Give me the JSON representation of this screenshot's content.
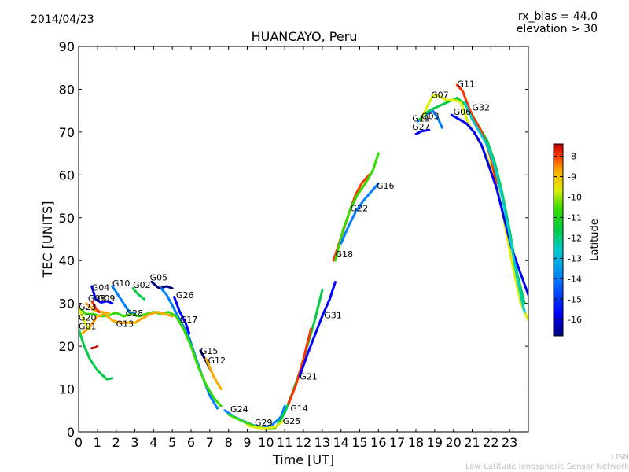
{
  "header": {
    "date": "2014/04/23",
    "rx_bias": "rx_bias = 44.0",
    "elevation": "elevation > 30",
    "title": "HUANCAYO, Peru"
  },
  "footer": {
    "line1": "LISN",
    "line2": "Low-Latitude Ionospheric Sensor Network"
  },
  "colors": {
    "background": "#ffffff",
    "axis": "#000000",
    "colormap": [
      "#00007f",
      "#0000ff",
      "#007fff",
      "#00cccc",
      "#00cc44",
      "#33dd00",
      "#ddee00",
      "#ffaa00",
      "#ff3300",
      "#c00000"
    ]
  },
  "chart_data": {
    "type": "line",
    "title": "HUANCAYO, Peru",
    "xlabel": "Time [UT]",
    "ylabel": "TEC [UNITS]",
    "xlim": [
      0,
      24
    ],
    "ylim": [
      0,
      90
    ],
    "xticks": [
      0,
      1,
      2,
      3,
      4,
      5,
      6,
      7,
      8,
      9,
      10,
      11,
      12,
      13,
      14,
      15,
      16,
      17,
      18,
      19,
      20,
      21,
      22,
      23
    ],
    "yticks": [
      0,
      10,
      20,
      30,
      40,
      50,
      60,
      70,
      80,
      90
    ],
    "colorbar": {
      "label": "Latitude",
      "range": [
        -16.8,
        -7.4
      ],
      "ticks": [
        -16,
        -15,
        -14,
        -13,
        -12,
        -11,
        -10,
        -9,
        -8
      ]
    },
    "series": [
      {
        "name": "G04",
        "color_lat": -16,
        "label_at": [
          0.7,
          33.0
        ],
        "points": [
          [
            0.7,
            34
          ],
          [
            0.9,
            31
          ],
          [
            1.2,
            30.2
          ],
          [
            1.5,
            30.5
          ],
          [
            1.8,
            30
          ]
        ]
      },
      {
        "name": "G10",
        "color_lat": -15,
        "label_at": [
          1.8,
          34.0
        ],
        "points": [
          [
            1.8,
            34
          ],
          [
            2.1,
            32
          ],
          [
            2.4,
            30
          ],
          [
            2.7,
            28
          ],
          [
            3.0,
            27.5
          ]
        ]
      },
      {
        "name": "G02",
        "color_lat": -12.5,
        "label_at": [
          2.9,
          33.6
        ],
        "points": [
          [
            2.9,
            33.5
          ],
          [
            3.2,
            32
          ],
          [
            3.5,
            31
          ]
        ]
      },
      {
        "name": "G05",
        "color_lat": -16.5,
        "label_at": [
          3.8,
          35.4
        ],
        "points": [
          [
            3.9,
            35
          ],
          [
            4.3,
            33.5
          ],
          [
            4.7,
            34
          ],
          [
            5.0,
            33.5
          ]
        ]
      },
      {
        "name": "G26",
        "color_lat": -16,
        "label_at": [
          5.2,
          31.2
        ],
        "points": [
          [
            5.1,
            31.5
          ],
          [
            5.4,
            28
          ],
          [
            5.7,
            25.5
          ],
          [
            5.9,
            23
          ]
        ]
      },
      {
        "name": "G17",
        "color_lat": -14.5,
        "label_at": [
          5.4,
          25.5
        ],
        "points": [
          [
            4.4,
            33.5
          ],
          [
            4.7,
            32
          ],
          [
            5.0,
            29.5
          ],
          [
            5.3,
            27
          ],
          [
            5.6,
            24.5
          ],
          [
            5.9,
            22
          ],
          [
            6.2,
            18
          ],
          [
            6.6,
            13
          ],
          [
            7.0,
            8.5
          ],
          [
            7.4,
            5.5
          ]
        ]
      },
      {
        "name": "G15",
        "color_lat": -16.5,
        "label_at": [
          6.5,
          18.2
        ],
        "points": [
          [
            6.5,
            19
          ],
          [
            6.8,
            16.5
          ],
          [
            7.1,
            14
          ]
        ]
      },
      {
        "name": "G12",
        "color_lat": -10,
        "label_at": [
          6.9,
          16.0
        ],
        "points": [
          [
            6.8,
            17
          ],
          [
            7.2,
            13
          ],
          [
            7.6,
            10
          ]
        ]
      },
      {
        "name": "G28",
        "color_lat": -12,
        "label_at": [
          2.5,
          27.0
        ],
        "points": [
          [
            0.0,
            29
          ],
          [
            0.4,
            27.5
          ],
          [
            0.8,
            27.5
          ],
          [
            1.2,
            27
          ],
          [
            1.6,
            27.2
          ],
          [
            2.0,
            27.8
          ],
          [
            2.4,
            27
          ],
          [
            2.8,
            27.5
          ],
          [
            3.2,
            27
          ],
          [
            3.6,
            27.5
          ],
          [
            4.0,
            28
          ],
          [
            4.4,
            27.5
          ],
          [
            4.8,
            28
          ],
          [
            5.2,
            27
          ],
          [
            5.6,
            24
          ],
          [
            6.0,
            20
          ],
          [
            6.4,
            15
          ],
          [
            6.8,
            11
          ],
          [
            7.2,
            8
          ],
          [
            7.6,
            6
          ]
        ]
      },
      {
        "name": "G13",
        "color_lat": -9.8,
        "label_at": [
          2.0,
          24.5
        ],
        "points": [
          [
            0.2,
            23
          ],
          [
            0.6,
            24.5
          ],
          [
            1.0,
            27
          ],
          [
            1.4,
            27.5
          ],
          [
            1.8,
            26
          ],
          [
            2.2,
            25.5
          ],
          [
            2.6,
            25.5
          ],
          [
            3.0,
            25.5
          ],
          [
            3.4,
            26.5
          ],
          [
            3.8,
            27.5
          ],
          [
            4.2,
            28
          ],
          [
            4.6,
            27.5
          ],
          [
            5.0,
            27
          ]
        ]
      },
      {
        "name": "G08",
        "color_lat": -9.5,
        "label_at": [
          0.5,
          30.5
        ],
        "points": [
          [
            0.4,
            30
          ],
          [
            0.8,
            28.5
          ],
          [
            1.2,
            28
          ],
          [
            1.6,
            27.8
          ]
        ]
      },
      {
        "name": "G09",
        "color_lat": -8.5,
        "label_at": [
          1.0,
          30.5
        ],
        "points": [
          [
            0.7,
            30.5
          ],
          [
            0.9,
            29
          ],
          [
            1.1,
            28
          ]
        ]
      },
      {
        "name": "G23",
        "color_lat": -11,
        "label_at": [
          0.0,
          28.5
        ],
        "points": [
          [
            0.0,
            29
          ],
          [
            0.2,
            27
          ],
          [
            0.4,
            25
          ],
          [
            0.6,
            24
          ]
        ]
      },
      {
        "name": "G20",
        "color_lat": -12.5,
        "label_at": [
          0.0,
          26.0
        ],
        "points": [
          [
            0.0,
            24
          ],
          [
            0.3,
            20
          ],
          [
            0.6,
            17
          ],
          [
            0.9,
            15
          ],
          [
            1.2,
            13.5
          ],
          [
            1.5,
            12.3
          ],
          [
            1.8,
            12.5
          ]
        ]
      },
      {
        "name": "G01",
        "color_lat": -7.8,
        "label_at": [
          0.0,
          24.0
        ],
        "points": [
          [
            0.7,
            19.5
          ],
          [
            0.9,
            19.7
          ],
          [
            1.0,
            20
          ]
        ]
      },
      {
        "name": "G24",
        "color_lat": -15,
        "label_at": [
          8.1,
          4.6
        ],
        "points": [
          [
            7.8,
            5
          ],
          [
            8.3,
            3.5
          ],
          [
            8.8,
            2.5
          ],
          [
            9.3,
            1.6
          ],
          [
            9.8,
            1.0
          ],
          [
            10.3,
            1.5
          ],
          [
            10.8,
            3.5
          ],
          [
            11.0,
            6
          ]
        ]
      },
      {
        "name": "G29",
        "color_lat": -12,
        "label_at": [
          9.4,
          1.5
        ],
        "points": [
          [
            8.0,
            4
          ],
          [
            8.5,
            3
          ],
          [
            9.0,
            2
          ],
          [
            9.5,
            1.2
          ],
          [
            10.0,
            0.8
          ],
          [
            10.5,
            1.0
          ]
        ]
      },
      {
        "name": "G14",
        "color_lat": -13,
        "label_at": [
          11.3,
          4.8
        ],
        "points": [
          [
            10.6,
            1.5
          ],
          [
            11.0,
            4.5
          ],
          [
            11.4,
            9
          ],
          [
            11.8,
            14
          ],
          [
            12.2,
            20
          ],
          [
            12.6,
            26
          ],
          [
            13.0,
            33
          ]
        ]
      },
      {
        "name": "G25",
        "color_lat": -10.5,
        "label_at": [
          10.9,
          1.8
        ],
        "points": [
          [
            9.0,
            1.5
          ],
          [
            9.5,
            1.0
          ],
          [
            10.0,
            0.8
          ],
          [
            10.5,
            1.2
          ],
          [
            10.9,
            2.5
          ]
        ]
      },
      {
        "name": "G21",
        "color_lat": -8.5,
        "label_at": [
          11.8,
          12.2
        ],
        "points": [
          [
            11.2,
            6.5
          ],
          [
            11.6,
            11
          ],
          [
            12.0,
            17
          ],
          [
            12.4,
            24
          ]
        ]
      },
      {
        "name": "G31",
        "color_lat": -15.5,
        "label_at": [
          13.1,
          26.5
        ],
        "points": [
          [
            11.8,
            13
          ],
          [
            12.2,
            18
          ],
          [
            12.6,
            22.5
          ],
          [
            13.0,
            27
          ],
          [
            13.4,
            31
          ],
          [
            13.7,
            35
          ]
        ]
      },
      {
        "name": "G18",
        "color_lat": -8.5,
        "label_at": [
          13.7,
          40.8
        ],
        "points": [
          [
            13.6,
            40
          ],
          [
            13.9,
            44
          ],
          [
            14.2,
            48
          ],
          [
            14.5,
            52
          ],
          [
            14.8,
            55.5
          ],
          [
            15.1,
            58
          ],
          [
            15.5,
            60
          ]
        ]
      },
      {
        "name": "G22",
        "color_lat": -12,
        "label_at": [
          14.5,
          51.5
        ],
        "points": [
          [
            13.7,
            40
          ],
          [
            14.1,
            47
          ],
          [
            14.5,
            52
          ],
          [
            14.9,
            55.5
          ],
          [
            15.3,
            58
          ],
          [
            15.7,
            61
          ],
          [
            16.0,
            65
          ]
        ]
      },
      {
        "name": "G16",
        "color_lat": -15,
        "label_at": [
          15.9,
          56.8
        ],
        "points": [
          [
            14.0,
            44
          ],
          [
            14.4,
            48
          ],
          [
            14.8,
            51.5
          ],
          [
            15.2,
            54
          ],
          [
            15.6,
            56
          ],
          [
            16.0,
            58
          ]
        ]
      },
      {
        "name": "G19",
        "color_lat": -14.5,
        "label_at": [
          17.8,
          72.5
        ],
        "points": [
          [
            18.1,
            72.5
          ],
          [
            18.5,
            74
          ],
          [
            18.9,
            75
          ],
          [
            19.2,
            73
          ],
          [
            19.4,
            71
          ]
        ]
      },
      {
        "name": "G27",
        "color_lat": -16,
        "label_at": [
          17.8,
          70.5
        ],
        "points": [
          [
            18.0,
            69.5
          ],
          [
            18.3,
            70.2
          ],
          [
            18.7,
            70.5
          ]
        ]
      },
      {
        "name": "G03",
        "color_lat": -13,
        "label_at": [
          18.3,
          73.0
        ],
        "points": [
          [
            18.2,
            73
          ],
          [
            18.7,
            75
          ],
          [
            19.2,
            76
          ],
          [
            19.7,
            77
          ],
          [
            20.2,
            78
          ],
          [
            20.6,
            76.5
          ],
          [
            21.0,
            74
          ],
          [
            21.4,
            71
          ],
          [
            21.8,
            68
          ],
          [
            22.2,
            63
          ],
          [
            22.6,
            56
          ],
          [
            23.0,
            47
          ],
          [
            23.4,
            37
          ],
          [
            23.8,
            30
          ]
        ]
      },
      {
        "name": "G07",
        "color_lat": -11,
        "label_at": [
          18.8,
          78.0
        ],
        "points": [
          [
            18.3,
            73
          ],
          [
            18.6,
            76
          ],
          [
            18.9,
            78.5
          ],
          [
            19.2,
            78.5
          ],
          [
            19.6,
            77.5
          ],
          [
            20.0,
            77.5
          ],
          [
            20.4,
            77
          ],
          [
            20.8,
            72
          ],
          [
            21.2,
            69
          ],
          [
            21.6,
            66
          ],
          [
            22.0,
            62
          ],
          [
            22.4,
            56
          ],
          [
            22.8,
            47
          ],
          [
            23.2,
            38
          ],
          [
            23.6,
            30
          ],
          [
            24.0,
            26
          ]
        ]
      },
      {
        "name": "G11",
        "color_lat": -8.5,
        "label_at": [
          20.2,
          80.5
        ],
        "points": [
          [
            20.2,
            81
          ],
          [
            20.5,
            79.5
          ],
          [
            20.8,
            76
          ],
          [
            21.1,
            73
          ],
          [
            21.4,
            71
          ],
          [
            21.7,
            68
          ],
          [
            22.0,
            64
          ],
          [
            22.3,
            58
          ]
        ]
      },
      {
        "name": "G06",
        "color_lat": -16,
        "label_at": [
          20.0,
          74.0
        ],
        "points": [
          [
            19.9,
            74
          ],
          [
            20.3,
            73
          ],
          [
            20.7,
            72
          ],
          [
            21.1,
            70
          ],
          [
            21.5,
            67
          ],
          [
            21.9,
            62
          ],
          [
            22.3,
            57
          ],
          [
            22.7,
            50
          ],
          [
            23.1,
            43
          ],
          [
            23.5,
            38
          ],
          [
            24.0,
            32
          ]
        ]
      },
      {
        "name": "G32",
        "color_lat": -13.5,
        "label_at": [
          21.0,
          75.0
        ],
        "points": [
          [
            20.6,
            77
          ],
          [
            21.0,
            73
          ],
          [
            21.4,
            70
          ],
          [
            21.8,
            67
          ],
          [
            22.2,
            62
          ],
          [
            22.6,
            55
          ],
          [
            23.0,
            46
          ],
          [
            23.4,
            36
          ],
          [
            23.8,
            28
          ]
        ]
      }
    ]
  }
}
